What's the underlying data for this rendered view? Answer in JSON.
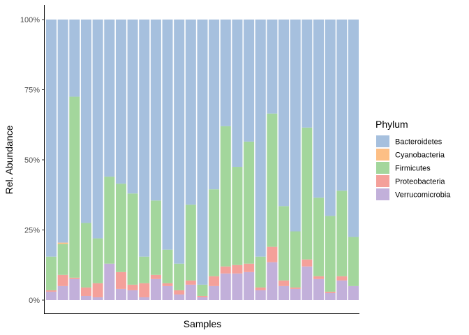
{
  "chart_data": {
    "type": "bar",
    "stacked": true,
    "xlabel": "Samples",
    "ylabel": "Rel. Abundance",
    "ylim": [
      0,
      1
    ],
    "yticks": [
      {
        "value": 0,
        "label": "0%"
      },
      {
        "value": 0.25,
        "label": "25%"
      },
      {
        "value": 0.5,
        "label": "50%"
      },
      {
        "value": 0.75,
        "label": "75%"
      },
      {
        "value": 1,
        "label": "100%"
      }
    ],
    "n_samples": 27,
    "legend": {
      "title": "Phylum",
      "position": "right"
    },
    "series": [
      {
        "name": "Verrucomicrobia",
        "color": "#c2b0da",
        "values": [
          0.03,
          0.05,
          0.075,
          0.015,
          0.01,
          0.13,
          0.04,
          0.035,
          0.01,
          0.075,
          0.05,
          0.02,
          0.055,
          0.01,
          0.05,
          0.095,
          0.095,
          0.1,
          0.035,
          0.135,
          0.05,
          0.04,
          0.12,
          0.075,
          0.025,
          0.07,
          0.05
        ]
      },
      {
        "name": "Proteobacteria",
        "color": "#f4a09a",
        "values": [
          0.005,
          0.04,
          0.005,
          0.03,
          0.05,
          0.0,
          0.06,
          0.02,
          0.05,
          0.015,
          0.01,
          0.015,
          0.015,
          0.005,
          0.035,
          0.025,
          0.03,
          0.03,
          0.01,
          0.055,
          0.02,
          0.005,
          0.025,
          0.01,
          0.005,
          0.015,
          0.0
        ]
      },
      {
        "name": "Firmicutes",
        "color": "#a3d69c",
        "values": [
          0.12,
          0.11,
          0.645,
          0.23,
          0.16,
          0.31,
          0.315,
          0.325,
          0.095,
          0.265,
          0.12,
          0.095,
          0.27,
          0.04,
          0.31,
          0.5,
          0.35,
          0.435,
          0.11,
          0.475,
          0.265,
          0.2,
          0.47,
          0.28,
          0.27,
          0.305,
          0.175
        ]
      },
      {
        "name": "Cyanobacteria",
        "color": "#fdbf85",
        "values": [
          0.0,
          0.005,
          0.0,
          0.0,
          0.0,
          0.0,
          0.0,
          0.0,
          0.0,
          0.0,
          0.0,
          0.0,
          0.0,
          0.0,
          0.0,
          0.0,
          0.0,
          0.0,
          0.0,
          0.0,
          0.0,
          0.0,
          0.0,
          0.0,
          0.0,
          0.0,
          0.0
        ]
      },
      {
        "name": "Bacteroidetes",
        "color": "#a6c0de",
        "values": [
          0.845,
          0.795,
          0.275,
          0.725,
          0.78,
          0.56,
          0.585,
          0.62,
          0.845,
          0.645,
          0.82,
          0.87,
          0.66,
          0.945,
          0.605,
          0.38,
          0.525,
          0.435,
          0.845,
          0.335,
          0.665,
          0.755,
          0.385,
          0.635,
          0.7,
          0.61,
          0.775
        ]
      }
    ],
    "legend_order": [
      "Bacteroidetes",
      "Cyanobacteria",
      "Firmicutes",
      "Proteobacteria",
      "Verrucomicrobia"
    ]
  }
}
